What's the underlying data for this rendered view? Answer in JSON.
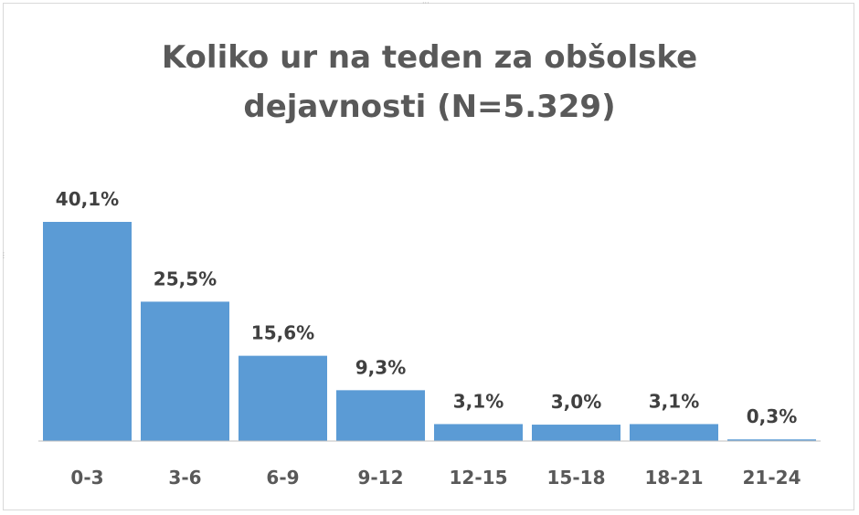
{
  "chart_data": {
    "type": "bar",
    "title_lines": [
      "Koliko ur na teden za obšolske",
      "dejavnosti (N=5.329)"
    ],
    "categories": [
      "0-3",
      "3-6",
      "6-9",
      "9-12",
      "12-15",
      "15-18",
      "18-21",
      "21-24"
    ],
    "values": [
      40.1,
      25.5,
      15.6,
      9.3,
      3.1,
      3.0,
      3.1,
      0.3
    ],
    "value_labels": [
      "40,1%",
      "25,5%",
      "15,6%",
      "9,3%",
      "3,1%",
      "3,0%",
      "3,1%",
      "0,3%"
    ],
    "ylim": [
      0,
      40.1
    ],
    "bar_color": "#5b9bd5",
    "grid": false,
    "legend": "none"
  }
}
